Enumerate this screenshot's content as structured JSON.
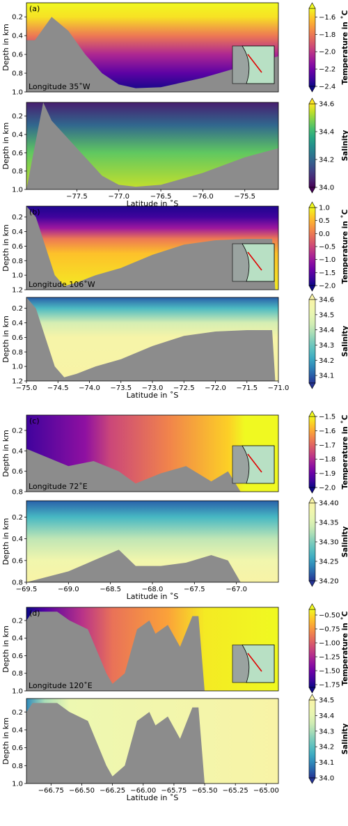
{
  "chart_data": [
    {
      "type": "heatmap",
      "panel_label": "(a)",
      "quantity": "temperature",
      "annotation": "Longitude 35˚W",
      "xlim": [
        -78.1,
        -75.1
      ],
      "xticks": [
        -77.5,
        -77.0,
        -76.5,
        -76.0,
        -75.5
      ],
      "ylabel": "Depth in km",
      "ylim": [
        0.05,
        1.0
      ],
      "yticks": [
        0.2,
        0.4,
        0.6,
        0.8,
        1.0
      ],
      "colorbar_label": "Temperature in ˚C",
      "colorbar_range": [
        -2.4,
        -1.5
      ],
      "colorbar_ticks": [
        -1.6,
        -1.8,
        -2.0,
        -2.2,
        -2.4
      ],
      "colormap": "plasma",
      "bathymetry": [
        [
          -78.1,
          0.45
        ],
        [
          -78.0,
          0.45
        ],
        [
          -77.8,
          0.2
        ],
        [
          -77.6,
          0.35
        ],
        [
          -77.4,
          0.6
        ],
        [
          -77.2,
          0.8
        ],
        [
          -77.0,
          0.92
        ],
        [
          -76.8,
          0.96
        ],
        [
          -76.5,
          0.95
        ],
        [
          -76.0,
          0.85
        ],
        [
          -75.5,
          0.72
        ],
        [
          -75.1,
          0.62
        ]
      ],
      "gradient": {
        "mode": "vertical",
        "stops": [
          [
            0.05,
            -1.5
          ],
          [
            0.2,
            -1.55
          ],
          [
            0.4,
            -1.8
          ],
          [
            0.6,
            -2.05
          ],
          [
            0.8,
            -2.25
          ],
          [
            1.0,
            -2.4
          ]
        ]
      }
    },
    {
      "type": "heatmap",
      "quantity": "salinity",
      "xlabel": "Latitude in ˚S",
      "xlim": [
        -78.1,
        -75.1
      ],
      "xticks": [
        -77.5,
        -77.0,
        -76.5,
        -76.0,
        -75.5
      ],
      "ylabel": "Depth in km",
      "ylim": [
        0.05,
        1.0
      ],
      "yticks": [
        0.2,
        0.4,
        0.6,
        0.8,
        1.0
      ],
      "colorbar_label": "Salinity",
      "colorbar_range": [
        34.0,
        34.6
      ],
      "colorbar_ticks": [
        34.6,
        34.4,
        34.2,
        34.0
      ],
      "colormap": "viridis",
      "bathymetry": [
        [
          -78.1,
          1.0
        ],
        [
          -77.9,
          0.05
        ],
        [
          -77.8,
          0.25
        ],
        [
          -77.5,
          0.55
        ],
        [
          -77.2,
          0.85
        ],
        [
          -77.0,
          0.95
        ],
        [
          -76.8,
          0.97
        ],
        [
          -76.5,
          0.95
        ],
        [
          -76.0,
          0.82
        ],
        [
          -75.5,
          0.65
        ],
        [
          -75.1,
          0.55
        ]
      ],
      "gradient": {
        "mode": "vertical",
        "stops": [
          [
            0.05,
            34.05
          ],
          [
            0.3,
            34.2
          ],
          [
            0.6,
            34.45
          ],
          [
            1.0,
            34.55
          ]
        ]
      }
    },
    {
      "type": "heatmap",
      "panel_label": "(b)",
      "quantity": "temperature",
      "annotation": "Longitude 106˚W",
      "xlim": [
        -75.0,
        -71.0
      ],
      "xticks": [
        -75.0,
        -74.5,
        -74.0,
        -73.5,
        -73.0,
        -72.5,
        -72.0,
        -71.5,
        -71.0
      ],
      "ylabel": "Depth in km",
      "ylim": [
        0.05,
        1.2
      ],
      "yticks": [
        0.2,
        0.4,
        0.6,
        0.8,
        1.0,
        1.2
      ],
      "colorbar_label": "Temperature in ˚C",
      "colorbar_range": [
        -2.0,
        1.0
      ],
      "colorbar_ticks": [
        1.0,
        0.5,
        0.0,
        -0.5,
        -1.0,
        -1.5,
        -2.0
      ],
      "colormap": "plasma",
      "bathymetry": [
        [
          -75.0,
          0.05
        ],
        [
          -74.85,
          0.2
        ],
        [
          -74.7,
          0.6
        ],
        [
          -74.55,
          1.0
        ],
        [
          -74.4,
          1.15
        ],
        [
          -74.2,
          1.1
        ],
        [
          -73.9,
          1.0
        ],
        [
          -73.5,
          0.9
        ],
        [
          -73.0,
          0.72
        ],
        [
          -72.5,
          0.58
        ],
        [
          -72.0,
          0.52
        ],
        [
          -71.5,
          0.5
        ],
        [
          -71.1,
          0.5
        ],
        [
          -71.05,
          1.2
        ],
        [
          -71.0,
          1.2
        ]
      ],
      "gradient": {
        "mode": "vertical",
        "stops": [
          [
            0.05,
            -1.9
          ],
          [
            0.2,
            -1.7
          ],
          [
            0.35,
            -1.0
          ],
          [
            0.5,
            0.0
          ],
          [
            0.7,
            0.6
          ],
          [
            1.2,
            0.9
          ]
        ]
      }
    },
    {
      "type": "heatmap",
      "quantity": "salinity",
      "xlabel": "Latitude in ˚S",
      "xlim": [
        -75.0,
        -71.0
      ],
      "xticks": [
        -75.0,
        -74.5,
        -74.0,
        -73.5,
        -73.0,
        -72.5,
        -72.0,
        -71.5,
        -71.0
      ],
      "ylabel": "Depth in km",
      "ylim": [
        0.05,
        1.2
      ],
      "yticks": [
        0.2,
        0.4,
        0.6,
        0.8,
        1.0,
        1.2
      ],
      "colorbar_label": "Salinity",
      "colorbar_range": [
        34.05,
        34.6
      ],
      "colorbar_ticks": [
        34.6,
        34.5,
        34.4,
        34.3,
        34.2,
        34.1
      ],
      "colormap": "yellowgreenblue",
      "bathymetry": [
        [
          -75.0,
          0.05
        ],
        [
          -74.85,
          0.2
        ],
        [
          -74.7,
          0.6
        ],
        [
          -74.55,
          1.0
        ],
        [
          -74.4,
          1.15
        ],
        [
          -74.2,
          1.1
        ],
        [
          -73.9,
          1.0
        ],
        [
          -73.5,
          0.9
        ],
        [
          -73.0,
          0.72
        ],
        [
          -72.5,
          0.58
        ],
        [
          -72.0,
          0.52
        ],
        [
          -71.5,
          0.5
        ],
        [
          -71.1,
          0.5
        ],
        [
          -71.05,
          1.2
        ],
        [
          -71.0,
          1.2
        ]
      ],
      "gradient": {
        "mode": "vertical",
        "stops": [
          [
            0.05,
            34.1
          ],
          [
            0.2,
            34.25
          ],
          [
            0.4,
            34.45
          ],
          [
            0.6,
            34.58
          ],
          [
            1.2,
            34.6
          ]
        ]
      }
    },
    {
      "type": "heatmap",
      "panel_label": "(c)",
      "quantity": "temperature",
      "annotation": "Longitude 72˚E",
      "xlim": [
        -69.5,
        -66.5
      ],
      "xticks": [
        -69.5,
        -69.0,
        -68.5,
        -68.0,
        -67.5,
        -67.0
      ],
      "ylabel": "Depth in km",
      "ylim": [
        0.05,
        0.8
      ],
      "yticks": [
        0.2,
        0.4,
        0.6,
        0.8
      ],
      "colorbar_label": "Temperature in ˚C",
      "colorbar_range": [
        -2.0,
        -1.5
      ],
      "colorbar_ticks": [
        -1.5,
        -1.6,
        -1.7,
        -1.8,
        -1.9,
        -2.0
      ],
      "colormap": "plasma",
      "bathymetry": [
        [
          -69.5,
          0.38
        ],
        [
          -69.0,
          0.55
        ],
        [
          -68.7,
          0.5
        ],
        [
          -68.4,
          0.6
        ],
        [
          -68.2,
          0.72
        ],
        [
          -67.9,
          0.62
        ],
        [
          -67.6,
          0.55
        ],
        [
          -67.3,
          0.7
        ],
        [
          -67.1,
          0.6
        ],
        [
          -66.95,
          0.8
        ]
      ],
      "gradient": {
        "mode": "horizontal",
        "stops": [
          [
            -69.5,
            -1.95
          ],
          [
            -68.8,
            -1.85
          ],
          [
            -68.5,
            -1.75
          ],
          [
            -67.8,
            -1.65
          ],
          [
            -67.1,
            -1.55
          ],
          [
            -66.9,
            -1.5
          ]
        ]
      }
    },
    {
      "type": "heatmap",
      "quantity": "salinity",
      "xlabel": "Latitude in ˚S",
      "xlim": [
        -69.5,
        -66.5
      ],
      "xticks": [
        -69.5,
        -69.0,
        -68.5,
        -68.0,
        -67.5,
        -67.0
      ],
      "ylabel": "Depth in km",
      "ylim": [
        0.05,
        0.8
      ],
      "yticks": [
        0.2,
        0.4,
        0.6,
        0.8
      ],
      "colorbar_label": "Salinity",
      "colorbar_range": [
        34.2,
        34.4
      ],
      "colorbar_ticks": [
        34.4,
        34.35,
        34.3,
        34.25,
        34.2
      ],
      "colormap": "yellowgreenblue",
      "bathymetry": [
        [
          -69.5,
          0.8
        ],
        [
          -69.0,
          0.7
        ],
        [
          -68.7,
          0.6
        ],
        [
          -68.4,
          0.5
        ],
        [
          -68.2,
          0.65
        ],
        [
          -67.9,
          0.65
        ],
        [
          -67.6,
          0.62
        ],
        [
          -67.3,
          0.55
        ],
        [
          -67.1,
          0.6
        ],
        [
          -66.95,
          0.8
        ]
      ],
      "gradient": {
        "mode": "vertical",
        "stops": [
          [
            0.05,
            34.22
          ],
          [
            0.2,
            34.27
          ],
          [
            0.4,
            34.33
          ],
          [
            0.6,
            34.38
          ],
          [
            0.8,
            34.4
          ]
        ]
      }
    },
    {
      "type": "heatmap",
      "panel_label": "(d)",
      "quantity": "temperature",
      "annotation": "Longitude 120˚E",
      "xlim": [
        -66.95,
        -64.9
      ],
      "xticks": [
        -66.75,
        -66.5,
        -66.25,
        -66.0,
        -65.75,
        -65.5,
        -65.25,
        -65.0
      ],
      "ylabel": "Depth in km",
      "ylim": [
        0.05,
        1.0
      ],
      "yticks": [
        0.2,
        0.4,
        0.6,
        0.8,
        1.0
      ],
      "colorbar_label": "Temperature in ˚C",
      "colorbar_range": [
        -1.8,
        -0.4
      ],
      "colorbar_ticks": [
        -0.5,
        -0.75,
        -1.0,
        -1.25,
        -1.5,
        -1.75
      ],
      "colormap": "plasma",
      "bathymetry": [
        [
          -66.95,
          0.2
        ],
        [
          -66.9,
          0.1
        ],
        [
          -66.7,
          0.1
        ],
        [
          -66.6,
          0.2
        ],
        [
          -66.45,
          0.3
        ],
        [
          -66.3,
          0.8
        ],
        [
          -66.25,
          0.92
        ],
        [
          -66.15,
          0.8
        ],
        [
          -66.05,
          0.3
        ],
        [
          -65.95,
          0.2
        ],
        [
          -65.9,
          0.35
        ],
        [
          -65.8,
          0.25
        ],
        [
          -65.7,
          0.5
        ],
        [
          -65.6,
          0.15
        ],
        [
          -65.55,
          0.15
        ],
        [
          -65.5,
          1.0
        ]
      ],
      "gradient": {
        "mode": "horizontal",
        "stops": [
          [
            -66.95,
            -1.8
          ],
          [
            -66.8,
            -1.6
          ],
          [
            -66.5,
            -1.2
          ],
          [
            -66.25,
            -0.9
          ],
          [
            -65.8,
            -0.7
          ],
          [
            -65.5,
            -0.45
          ],
          [
            -64.9,
            -0.4
          ]
        ]
      }
    },
    {
      "type": "heatmap",
      "quantity": "salinity",
      "xlabel": "Latitude in ˚S",
      "xlim": [
        -66.95,
        -64.9
      ],
      "xticks": [
        -66.75,
        -66.5,
        -66.25,
        -66.0,
        -65.75,
        -65.5,
        -65.25,
        -65.0
      ],
      "ylabel": "Depth in km",
      "ylim": [
        0.05,
        1.0
      ],
      "yticks": [
        0.2,
        0.4,
        0.6,
        0.8,
        1.0
      ],
      "colorbar_label": "Salinity",
      "colorbar_range": [
        34.0,
        34.5
      ],
      "colorbar_ticks": [
        34.5,
        34.4,
        34.3,
        34.2,
        34.1,
        34.0
      ],
      "colormap": "yellowgreenblue",
      "bathymetry": [
        [
          -66.95,
          0.2
        ],
        [
          -66.9,
          0.1
        ],
        [
          -66.7,
          0.1
        ],
        [
          -66.6,
          0.2
        ],
        [
          -66.45,
          0.3
        ],
        [
          -66.3,
          0.8
        ],
        [
          -66.25,
          0.92
        ],
        [
          -66.15,
          0.8
        ],
        [
          -66.05,
          0.3
        ],
        [
          -65.95,
          0.2
        ],
        [
          -65.9,
          0.35
        ],
        [
          -65.8,
          0.25
        ],
        [
          -65.7,
          0.5
        ],
        [
          -65.6,
          0.15
        ],
        [
          -65.55,
          0.15
        ],
        [
          -65.5,
          1.0
        ]
      ],
      "gradient": {
        "mode": "horizontal",
        "stops": [
          [
            -66.95,
            34.1
          ],
          [
            -66.8,
            34.3
          ],
          [
            -66.6,
            34.42
          ],
          [
            -66.0,
            34.45
          ],
          [
            -65.5,
            34.47
          ],
          [
            -64.9,
            34.5
          ]
        ]
      }
    }
  ]
}
